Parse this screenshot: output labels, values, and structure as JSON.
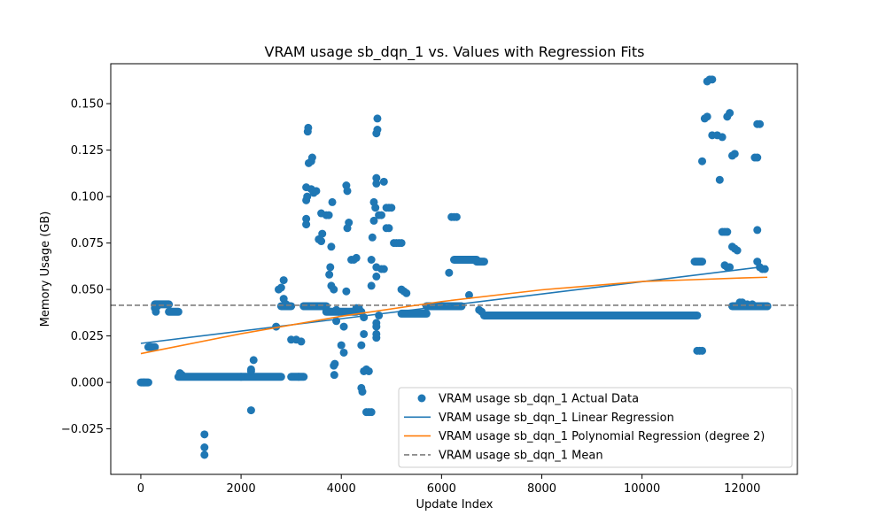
{
  "chart_data": {
    "type": "scatter",
    "title": "VRAM usage sb_dqn_1 vs. Values with Regression Fits",
    "xlabel": "Update Index",
    "ylabel": "Memory Usage (GB)",
    "xlim": [
      -600,
      13100
    ],
    "ylim": [
      -0.0495,
      0.1715
    ],
    "x_ticks": [
      0,
      2000,
      4000,
      6000,
      8000,
      10000,
      12000
    ],
    "y_ticks": [
      -0.025,
      0.0,
      0.025,
      0.05,
      0.075,
      0.1,
      0.125,
      0.15
    ],
    "x_tick_labels": [
      "0",
      "2000",
      "4000",
      "6000",
      "8000",
      "10000",
      "12000"
    ],
    "y_tick_labels": [
      "−0.025",
      "0.000",
      "0.025",
      "0.050",
      "0.075",
      "0.100",
      "0.125",
      "0.150"
    ],
    "grid": false,
    "legend_position": "lower-right",
    "series": [
      {
        "name": "VRAM usage sb_dqn_1 Actual Data",
        "kind": "scatter",
        "color": "#1f77b4",
        "segments": [
          {
            "x": [
              0,
              150
            ],
            "y": 0.0
          },
          {
            "x": [
              150,
              280
            ],
            "y": 0.019
          },
          {
            "x": [
              280,
              560
            ],
            "y": 0.042
          },
          {
            "x": [
              560,
              750
            ],
            "y": 0.038
          },
          {
            "x": [
              750,
              2800
            ],
            "y": 0.003
          },
          {
            "x": [
              2800,
              3000
            ],
            "y": 0.041
          },
          {
            "x": [
              3000,
              3250
            ],
            "y": 0.003
          },
          {
            "x": [
              3250,
              3700
            ],
            "y": 0.041
          },
          {
            "x": [
              3700,
              4300
            ],
            "y": 0.038
          },
          {
            "x": [
              5200,
              5700
            ],
            "y": 0.037
          },
          {
            "x": [
              5700,
              6400
            ],
            "y": 0.041
          },
          {
            "x": [
              6250,
              6700
            ],
            "y": 0.066
          },
          {
            "x": [
              6700,
              6850
            ],
            "y": 0.065
          },
          {
            "x": [
              6850,
              11100
            ],
            "y": 0.036
          },
          {
            "x": [
              11050,
              11200
            ],
            "y": 0.065
          },
          {
            "x": [
              11800,
              12500
            ],
            "y": 0.041
          }
        ],
        "points": [
          [
            60,
            0.0
          ],
          [
            200,
            0.019
          ],
          [
            280,
            0.04
          ],
          [
            300,
            0.038
          ],
          [
            330,
            0.041
          ],
          [
            780,
            0.005
          ],
          [
            820,
            0.004
          ],
          [
            1270,
            -0.028
          ],
          [
            1270,
            -0.035
          ],
          [
            1270,
            -0.039
          ],
          [
            2000,
            0.003
          ],
          [
            2200,
            0.007
          ],
          [
            2200,
            0.006
          ],
          [
            2250,
            0.012
          ],
          [
            2200,
            -0.015
          ],
          [
            2700,
            0.03
          ],
          [
            2750,
            0.05
          ],
          [
            2800,
            0.051
          ],
          [
            2850,
            0.055
          ],
          [
            2850,
            0.045
          ],
          [
            2900,
            0.042
          ],
          [
            3000,
            0.023
          ],
          [
            3100,
            0.023
          ],
          [
            3200,
            0.022
          ],
          [
            3150,
            0.003
          ],
          [
            3250,
            0.041
          ],
          [
            3300,
            0.041
          ],
          [
            3300,
            0.085
          ],
          [
            3300,
            0.088
          ],
          [
            3300,
            0.098
          ],
          [
            3320,
            0.1
          ],
          [
            3300,
            0.105
          ],
          [
            3330,
            0.135
          ],
          [
            3340,
            0.137
          ],
          [
            3350,
            0.118
          ],
          [
            3400,
            0.119
          ],
          [
            3420,
            0.121
          ],
          [
            3400,
            0.104
          ],
          [
            3450,
            0.102
          ],
          [
            3500,
            0.103
          ],
          [
            3550,
            0.077
          ],
          [
            3600,
            0.076
          ],
          [
            3620,
            0.08
          ],
          [
            3600,
            0.091
          ],
          [
            3700,
            0.09
          ],
          [
            3750,
            0.09
          ],
          [
            3780,
            0.062
          ],
          [
            3760,
            0.058
          ],
          [
            3800,
            0.052
          ],
          [
            3800,
            0.073
          ],
          [
            3820,
            0.097
          ],
          [
            3850,
            0.05
          ],
          [
            3850,
            0.009
          ],
          [
            3860,
            0.004
          ],
          [
            3870,
            0.01
          ],
          [
            3900,
            0.039
          ],
          [
            3950,
            0.038
          ],
          [
            3900,
            0.033
          ],
          [
            4000,
            0.02
          ],
          [
            4050,
            0.016
          ],
          [
            4050,
            0.03
          ],
          [
            4100,
            0.049
          ],
          [
            4100,
            0.106
          ],
          [
            4120,
            0.103
          ],
          [
            4120,
            0.083
          ],
          [
            4150,
            0.086
          ],
          [
            4200,
            0.066
          ],
          [
            4250,
            0.066
          ],
          [
            4300,
            0.067
          ],
          [
            4300,
            0.04
          ],
          [
            4350,
            0.04
          ],
          [
            4400,
            0.038
          ],
          [
            4450,
            0.035
          ],
          [
            4400,
            0.02
          ],
          [
            4450,
            0.026
          ],
          [
            4400,
            -0.003
          ],
          [
            4420,
            -0.005
          ],
          [
            4450,
            0.006
          ],
          [
            4500,
            0.007
          ],
          [
            4550,
            0.006
          ],
          [
            4500,
            -0.016
          ],
          [
            4550,
            -0.016
          ],
          [
            4600,
            -0.016
          ],
          [
            4600,
            0.052
          ],
          [
            4600,
            0.066
          ],
          [
            4620,
            0.078
          ],
          [
            4650,
            0.087
          ],
          [
            4650,
            0.097
          ],
          [
            4680,
            0.094
          ],
          [
            4700,
            0.11
          ],
          [
            4700,
            0.107
          ],
          [
            4700,
            0.134
          ],
          [
            4720,
            0.136
          ],
          [
            4720,
            0.142
          ],
          [
            4700,
            0.062
          ],
          [
            4750,
            0.09
          ],
          [
            4800,
            0.09
          ],
          [
            4850,
            0.108
          ],
          [
            4800,
            0.061
          ],
          [
            4850,
            0.061
          ],
          [
            4700,
            0.057
          ],
          [
            4700,
            0.032
          ],
          [
            4700,
            0.03
          ],
          [
            4700,
            0.024
          ],
          [
            4700,
            0.026
          ],
          [
            4750,
            0.036
          ],
          [
            4900,
            0.094
          ],
          [
            4950,
            0.094
          ],
          [
            5000,
            0.094
          ],
          [
            4900,
            0.083
          ],
          [
            4950,
            0.083
          ],
          [
            5050,
            0.075
          ],
          [
            5100,
            0.075
          ],
          [
            5150,
            0.075
          ],
          [
            5200,
            0.075
          ],
          [
            5200,
            0.05
          ],
          [
            5250,
            0.049
          ],
          [
            5300,
            0.048
          ],
          [
            6150,
            0.059
          ],
          [
            6200,
            0.089
          ],
          [
            6250,
            0.089
          ],
          [
            6300,
            0.089
          ],
          [
            6550,
            0.047
          ],
          [
            6750,
            0.039
          ],
          [
            6800,
            0.038
          ],
          [
            11100,
            0.017
          ],
          [
            11150,
            0.017
          ],
          [
            11200,
            0.017
          ],
          [
            11200,
            0.119
          ],
          [
            11250,
            0.142
          ],
          [
            11300,
            0.143
          ],
          [
            11300,
            0.162
          ],
          [
            11350,
            0.163
          ],
          [
            11400,
            0.163
          ],
          [
            11400,
            0.133
          ],
          [
            11500,
            0.133
          ],
          [
            11600,
            0.132
          ],
          [
            11550,
            0.109
          ],
          [
            11600,
            0.081
          ],
          [
            11650,
            0.081
          ],
          [
            11700,
            0.081
          ],
          [
            11650,
            0.063
          ],
          [
            11700,
            0.062
          ],
          [
            11750,
            0.062
          ],
          [
            11700,
            0.143
          ],
          [
            11750,
            0.145
          ],
          [
            11800,
            0.122
          ],
          [
            11850,
            0.123
          ],
          [
            11800,
            0.073
          ],
          [
            11850,
            0.072
          ],
          [
            11900,
            0.071
          ],
          [
            11950,
            0.043
          ],
          [
            12000,
            0.043
          ],
          [
            12100,
            0.042
          ],
          [
            12200,
            0.042
          ],
          [
            12250,
            0.121
          ],
          [
            12300,
            0.121
          ],
          [
            12300,
            0.139
          ],
          [
            12350,
            0.139
          ],
          [
            12300,
            0.082
          ],
          [
            12300,
            0.065
          ],
          [
            12350,
            0.062
          ],
          [
            12400,
            0.061
          ],
          [
            12450,
            0.061
          ],
          [
            12500,
            0.041
          ]
        ]
      },
      {
        "name": "VRAM usage sb_dqn_1 Linear Regression",
        "kind": "line",
        "color": "#1f77b4",
        "x": [
          0,
          12500
        ],
        "y": [
          0.021,
          0.0625
        ]
      },
      {
        "name": "VRAM usage sb_dqn_1 Polynomial Regression (degree 2)",
        "kind": "line",
        "color": "#ff7f0e",
        "x": [
          0,
          2000,
          4000,
          6000,
          8000,
          10000,
          12000,
          12500
        ],
        "y": [
          0.0155,
          0.0262,
          0.0356,
          0.0435,
          0.0498,
          0.0543,
          0.0562,
          0.0566
        ]
      },
      {
        "name": "VRAM usage sb_dqn_1 Mean",
        "kind": "hline",
        "color": "#7f7f7f",
        "y": 0.0415
      }
    ]
  }
}
